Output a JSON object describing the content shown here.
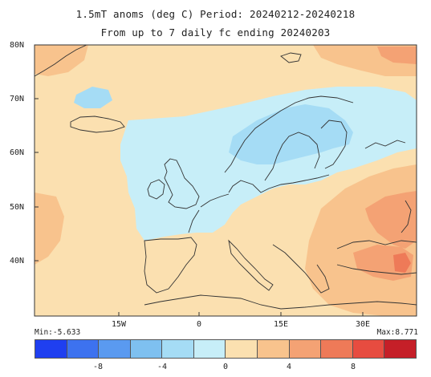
{
  "title": "1.5mT anoms (deg C)  Period: 20240212-20240218",
  "subtitle": "From up to 7 daily fc ending 20240203",
  "lat_labels": [
    "80N",
    "70N",
    "60N",
    "50N",
    "40N"
  ],
  "lon_labels": [
    "15W",
    "0",
    "15E",
    "30E"
  ],
  "min_label": "Min:-5.633",
  "max_label": "Max:8.771",
  "colorbar": {
    "colors": [
      "#1f3ff0",
      "#3d72ef",
      "#5a9af0",
      "#7ec0f0",
      "#a5dcf5",
      "#c7eef8",
      "#fbe0b0",
      "#f8c38d",
      "#f4a274",
      "#ee7a58",
      "#e74c40",
      "#c51f28"
    ],
    "tick_labels": [
      "-8",
      "-4",
      "0",
      "4",
      "8"
    ]
  },
  "map": {
    "lon_range": [
      -25,
      40
    ],
    "lat_range": [
      30,
      80
    ],
    "land_color": "#fbe0b0",
    "ocean_color": "#fbe0b0",
    "cold_anomaly_color": "#a5dcf5",
    "strong_cold_color": "#7ec0f0",
    "warm_color": "#f8c38d",
    "hot_color": "#ee7a58"
  }
}
